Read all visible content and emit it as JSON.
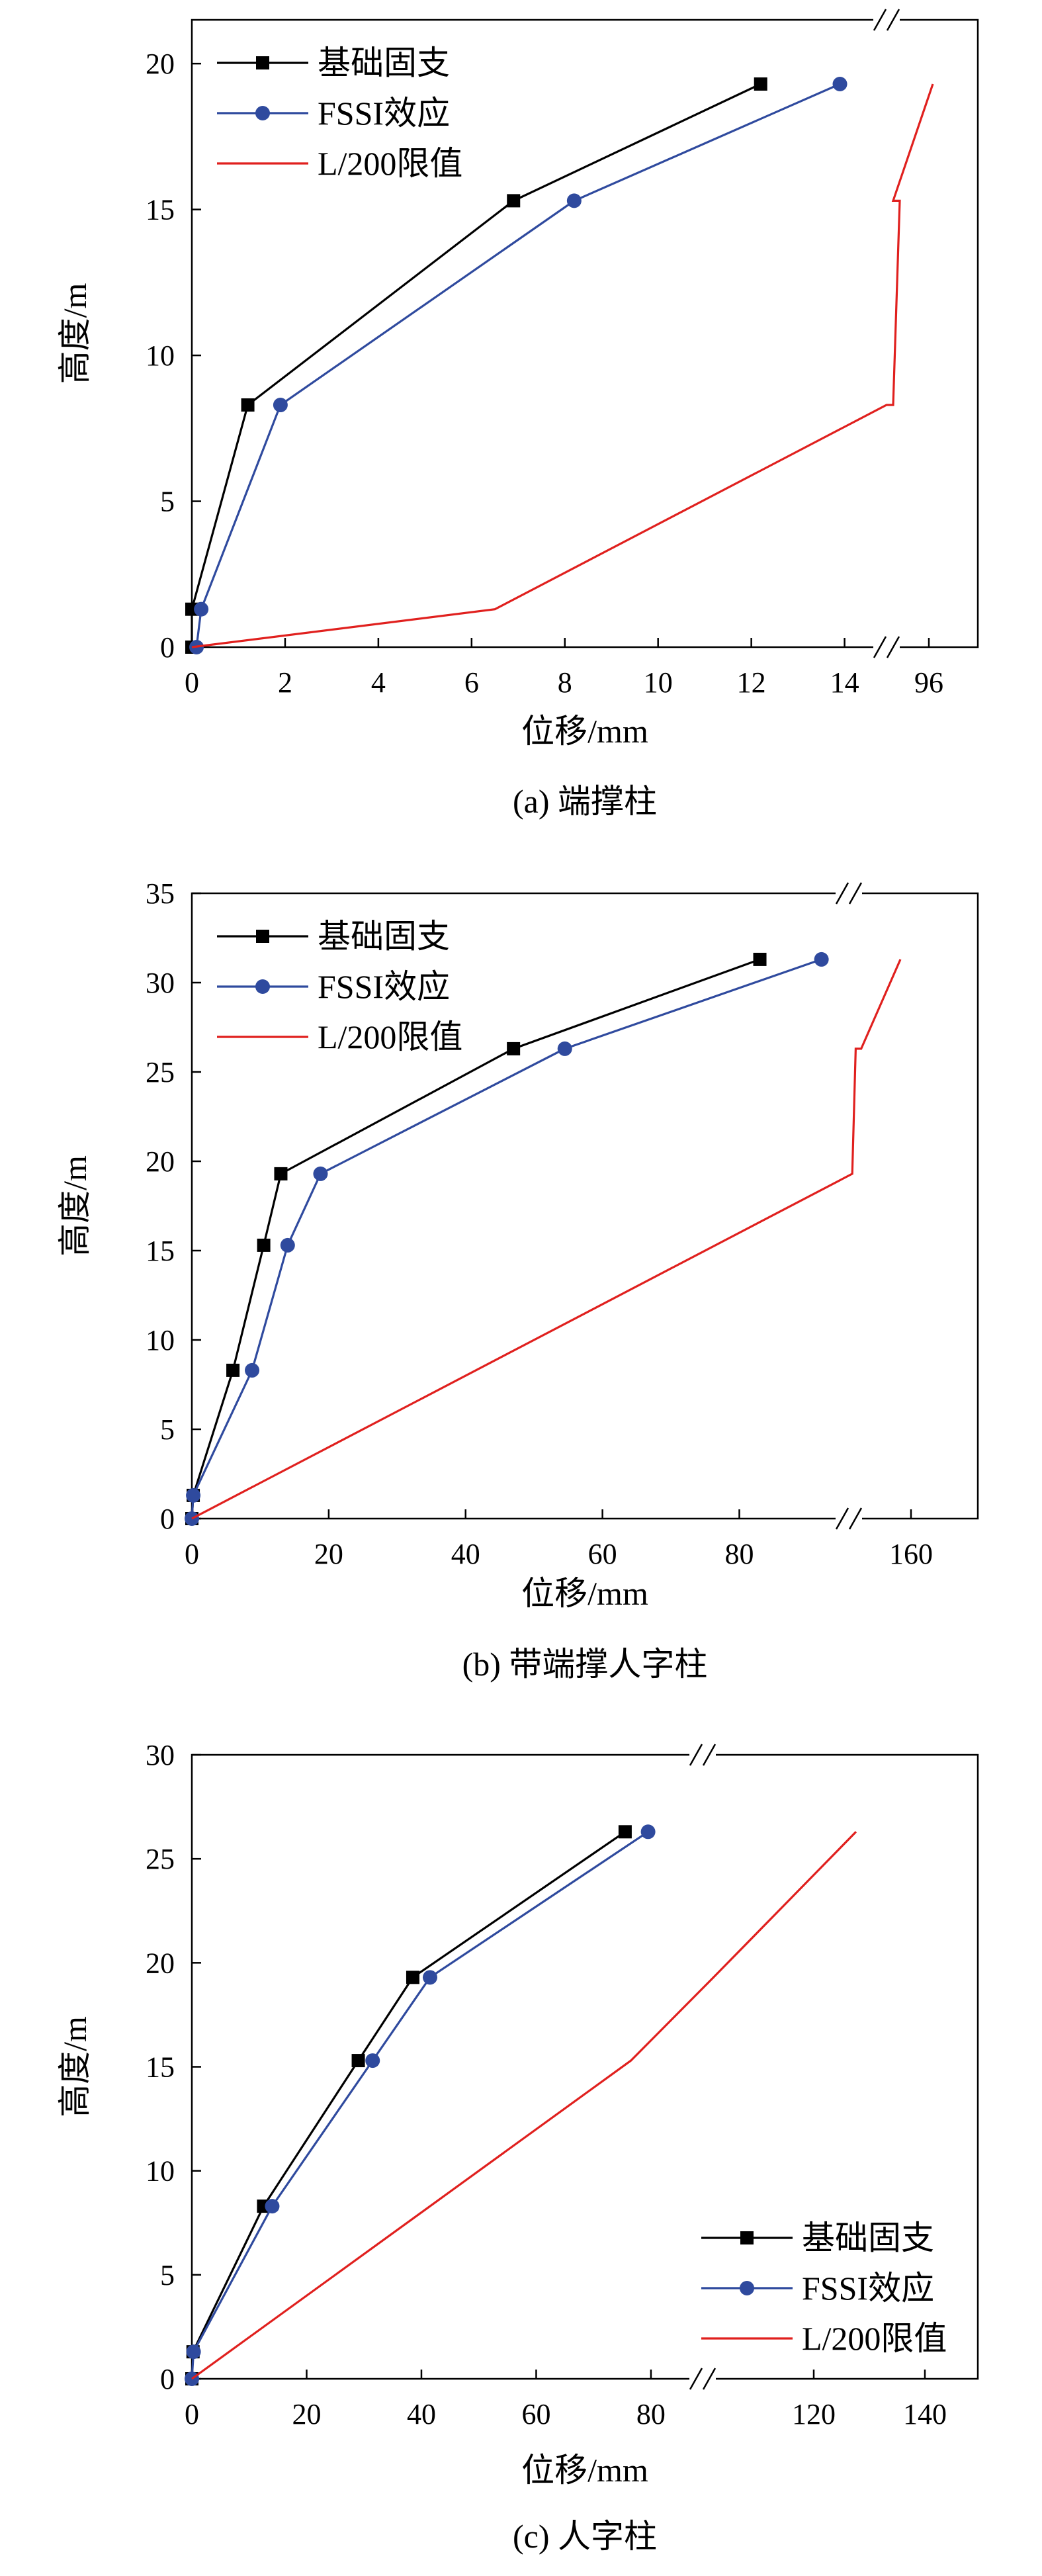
{
  "chart_data": [
    {
      "type": "line",
      "caption": "(a) 端撑柱",
      "xlabel": "位移/mm",
      "ylabel": "高度/m",
      "ylim": [
        0,
        21.5
      ],
      "yticks": [
        0,
        5,
        10,
        15,
        20
      ],
      "xticks": [
        0,
        2,
        4,
        6,
        8,
        10,
        12,
        14
      ],
      "x_break_after": 14.9,
      "x_break_ticks": [
        96
      ],
      "legend_position": "top-left",
      "series": [
        {
          "name": "基础固支",
          "color": "#000000",
          "marker": "square",
          "points": [
            [
              0,
              0
            ],
            [
              0,
              1.3
            ],
            [
              1.2,
              8.3
            ],
            [
              6.9,
              15.3
            ],
            [
              12.2,
              19.3
            ]
          ]
        },
        {
          "name": "FSSI效应",
          "color": "#2f4a9e",
          "marker": "circle",
          "points": [
            [
              0.1,
              0
            ],
            [
              0.2,
              1.3
            ],
            [
              1.9,
              8.3
            ],
            [
              8.2,
              15.3
            ],
            [
              13.9,
              19.3
            ]
          ]
        },
        {
          "name": "L/200限值",
          "color": "#e0201e",
          "marker": "none",
          "points": [
            [
              0,
              0
            ],
            [
              6.5,
              1.3
            ],
            [
              14.9,
              8.3
            ],
            [
              15.0,
              8.3
            ],
            [
              15.1,
              15.3
            ],
            [
              15.0,
              15.3
            ],
            [
              15.6,
              19.3
            ]
          ]
        }
      ]
    },
    {
      "type": "line",
      "caption": "(b) 带端撑人字柱",
      "xlabel": "位移/mm",
      "ylabel": "高度/m",
      "ylim": [
        0,
        35
      ],
      "yticks": [
        0,
        5,
        10,
        15,
        20,
        25,
        30,
        35
      ],
      "xticks": [
        0,
        20,
        40,
        60,
        80
      ],
      "x_break_after": 96,
      "x_break_ticks": [
        160
      ],
      "legend_position": "top-left",
      "series": [
        {
          "name": "基础固支",
          "color": "#000000",
          "marker": "square",
          "points": [
            [
              0,
              0
            ],
            [
              0.2,
              1.3
            ],
            [
              6,
              8.3
            ],
            [
              10.5,
              15.3
            ],
            [
              13,
              19.3
            ],
            [
              47,
              26.3
            ],
            [
              83,
              31.3
            ]
          ]
        },
        {
          "name": "FSSI效应",
          "color": "#2f4a9e",
          "marker": "circle",
          "points": [
            [
              0,
              0
            ],
            [
              0.2,
              1.3
            ],
            [
              8.8,
              8.3
            ],
            [
              14,
              15.3
            ],
            [
              18.8,
              19.3
            ],
            [
              54.5,
              26.3
            ],
            [
              92,
              31.3
            ]
          ]
        },
        {
          "name": "L/200限值",
          "color": "#e0201e",
          "marker": "none",
          "points": [
            [
              0,
              0
            ],
            [
              95,
              19
            ],
            [
              96.5,
              19.3
            ],
            [
              97,
              26.3
            ],
            [
              97.8,
              26.3
            ],
            [
              103.5,
              31.3
            ]
          ]
        }
      ]
    },
    {
      "type": "line",
      "caption": "(c) 人字柱",
      "xlabel": "位移/mm",
      "ylabel": "高度/m",
      "ylim": [
        0,
        30
      ],
      "yticks": [
        0,
        5,
        10,
        15,
        20,
        25,
        30
      ],
      "xticks": [
        0,
        20,
        40,
        60,
        80
      ],
      "x_break_after": 89,
      "x_break_ticks": [
        120,
        140
      ],
      "legend_position": "bottom-right",
      "series": [
        {
          "name": "基础固支",
          "color": "#000000",
          "marker": "square",
          "points": [
            [
              0,
              0
            ],
            [
              0.2,
              1.3
            ],
            [
              12.5,
              8.3
            ],
            [
              29,
              15.3
            ],
            [
              38.5,
              19.3
            ],
            [
              75.5,
              26.3
            ]
          ]
        },
        {
          "name": "FSSI效应",
          "color": "#2f4a9e",
          "marker": "circle",
          "points": [
            [
              0,
              0
            ],
            [
              0.3,
              1.3
            ],
            [
              14,
              8.3
            ],
            [
              31.5,
              15.3
            ],
            [
              41.5,
              19.3
            ],
            [
              79.5,
              26.3
            ]
          ]
        },
        {
          "name": "L/200限值",
          "color": "#e0201e",
          "marker": "none",
          "points": [
            [
              0,
              0
            ],
            [
              76.5,
              15.3
            ],
            [
              91.5,
              19.3
            ],
            [
              124.2,
              26.3
            ]
          ]
        }
      ]
    }
  ]
}
